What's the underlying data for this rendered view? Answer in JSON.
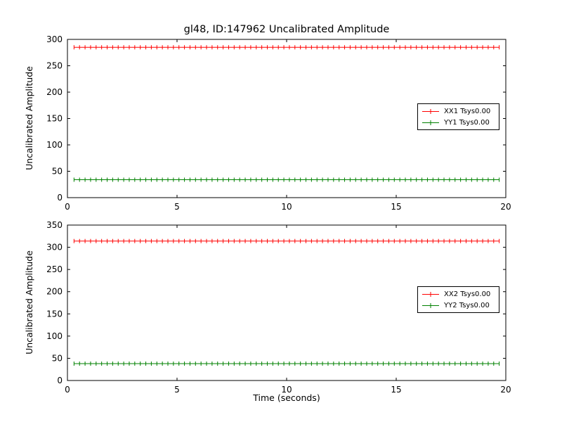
{
  "figure": {
    "background": "#ffffff",
    "frame_color": "#000000"
  },
  "chart_data": [
    {
      "type": "line",
      "title": "gl48, ID:147962 Uncalibrated Amplitude",
      "xlabel": "",
      "ylabel": "Uncalibrated Amplitude",
      "xlim": [
        0,
        20
      ],
      "ylim": [
        0,
        300
      ],
      "xticks": [
        0,
        5,
        10,
        15,
        20
      ],
      "yticks": [
        0,
        50,
        100,
        150,
        200,
        250,
        300
      ],
      "x_start": 0.3,
      "x_end": 19.7,
      "n_points": 78,
      "marker": "plus",
      "grid": false,
      "legend_position": "center-right",
      "series": [
        {
          "name": "XX1 Tsys0.00",
          "value": 285,
          "color": "#ff0000"
        },
        {
          "name": "YY1 Tsys0.00",
          "value": 34,
          "color": "#008000"
        }
      ]
    },
    {
      "type": "line",
      "title": "",
      "xlabel": "Time (seconds)",
      "ylabel": "Uncalibrated Amplitude",
      "xlim": [
        0,
        20
      ],
      "ylim": [
        0,
        350
      ],
      "xticks": [
        0,
        5,
        10,
        15,
        20
      ],
      "yticks": [
        0,
        50,
        100,
        150,
        200,
        250,
        300,
        350
      ],
      "x_start": 0.3,
      "x_end": 19.7,
      "n_points": 78,
      "marker": "plus",
      "grid": false,
      "legend_position": "center-right",
      "series": [
        {
          "name": "XX2 Tsys0.00",
          "value": 314,
          "color": "#ff0000"
        },
        {
          "name": "YY2 Tsys0.00",
          "value": 38,
          "color": "#008000"
        }
      ]
    }
  ]
}
